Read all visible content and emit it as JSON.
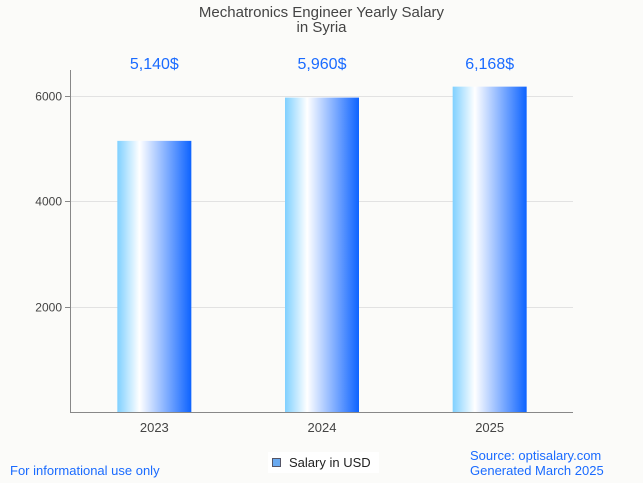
{
  "chart_data": {
    "type": "bar",
    "title": "Mechatronics Engineer Yearly Salary",
    "subtitle": "in Syria",
    "categories": [
      "2023",
      "2024",
      "2025"
    ],
    "values": [
      5140,
      5960,
      6168
    ],
    "data_labels": [
      "5,140$",
      "5,960$",
      "6,168$"
    ],
    "yticks": [
      2000,
      4000,
      6000
    ],
    "ylim": [
      0,
      6500
    ],
    "xlabel": "",
    "ylabel": "",
    "grid": true,
    "legend": {
      "entries": [
        "Salary in USD"
      ],
      "placement": "bottom-center"
    },
    "colors": {
      "bar_left": "#7fd0ff",
      "bar_mid": "#ffffff",
      "bar_right": "#0d63ff",
      "label": "#1a6bff"
    }
  },
  "footer": {
    "left": "For informational use only",
    "source": "Source: optisalary.com",
    "generated": "Generated March 2025"
  }
}
